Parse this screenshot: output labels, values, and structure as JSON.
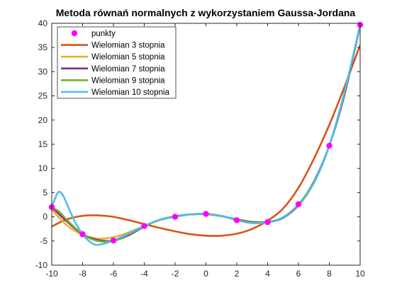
{
  "chart_data": {
    "type": "line",
    "title": "Metoda równań normalnych z wykorzystaniem Gaussa-Jordana",
    "xlabel": "",
    "ylabel": "",
    "xlim": [
      -10,
      10
    ],
    "ylim": [
      -10,
      40
    ],
    "xticks": [
      -10,
      -8,
      -6,
      -4,
      -2,
      0,
      2,
      4,
      6,
      8,
      10
    ],
    "yticks": [
      -10,
      -5,
      0,
      5,
      10,
      15,
      20,
      25,
      30,
      35,
      40
    ],
    "grid": false,
    "legend_position": "top-left",
    "points": {
      "name": "punkty",
      "color": "#FF00FF",
      "x": [
        -10,
        -8,
        -6,
        -4,
        -2,
        0,
        2,
        4,
        6,
        8,
        10
      ],
      "y": [
        2.0,
        -3.6,
        -4.9,
        -1.9,
        0.0,
        0.6,
        -0.7,
        -1.1,
        2.6,
        14.7,
        39.7
      ]
    },
    "series": [
      {
        "name": "Wielomian 3 stopnia",
        "color": "#D95319",
        "x": [
          -10,
          -9,
          -8,
          -7,
          -6,
          -5,
          -4,
          -3,
          -2,
          -1,
          0,
          1,
          2,
          3,
          4,
          5,
          6,
          7,
          8,
          9,
          10
        ],
        "y": [
          -2.0,
          -0.5,
          0.2,
          0.3,
          0.0,
          -0.7,
          -1.5,
          -2.3,
          -3.0,
          -3.6,
          -3.9,
          -3.9,
          -3.5,
          -2.5,
          -0.8,
          1.7,
          6.0,
          12.0,
          19.0,
          27.0,
          35.5
        ]
      },
      {
        "name": "Wielomian 5 stopnia",
        "color": "#EDB120",
        "x": [
          -10,
          -9,
          -8,
          -7,
          -6,
          -5,
          -4,
          -3,
          -2,
          -1,
          0,
          1,
          2,
          3,
          4,
          5,
          6,
          7,
          8,
          9,
          10
        ],
        "y": [
          1.5,
          -1.8,
          -3.7,
          -4.5,
          -4.2,
          -3.2,
          -1.9,
          -0.7,
          0.1,
          0.5,
          0.5,
          0.1,
          -0.5,
          -1.0,
          -1.0,
          -0.2,
          2.3,
          7.0,
          14.7,
          25.5,
          39.5
        ]
      },
      {
        "name": "Wielomian 7 stopnia",
        "color": "#7E2F8E",
        "x": [
          -10,
          -9,
          -8,
          -7,
          -6,
          -5,
          -4,
          -3,
          -2,
          -1,
          0,
          1,
          2,
          3,
          4,
          5,
          6,
          7,
          8,
          9,
          10
        ],
        "y": [
          2.0,
          -1.0,
          -3.6,
          -4.8,
          -4.9,
          -3.8,
          -2.0,
          -0.6,
          0.1,
          0.5,
          0.6,
          0.2,
          -0.6,
          -1.1,
          -1.1,
          -0.2,
          2.5,
          7.3,
          14.7,
          25.4,
          39.7
        ]
      },
      {
        "name": "Wielomian 9 stopnia",
        "color": "#77AC30",
        "x": [
          -10,
          -9.5,
          -9,
          -8,
          -7,
          -6,
          -5,
          -4,
          -3,
          -2,
          -1,
          0,
          1,
          2,
          3,
          4,
          5,
          6,
          7,
          8,
          9,
          10
        ],
        "y": [
          2.0,
          1.0,
          -0.7,
          -3.6,
          -5.0,
          -4.9,
          -3.6,
          -1.9,
          -0.6,
          0.0,
          0.5,
          0.6,
          0.2,
          -0.7,
          -1.2,
          -1.1,
          -0.1,
          2.6,
          7.2,
          14.7,
          25.8,
          39.7
        ]
      },
      {
        "name": "Wielomian 10 stopnia",
        "color": "#4DBEEE",
        "x": [
          -10,
          -9.6,
          -9.3,
          -9,
          -8.5,
          -8,
          -7.5,
          -7,
          -6,
          -5,
          -4,
          -3,
          -2,
          -1,
          0,
          1,
          2,
          3,
          4,
          5,
          6,
          7,
          8,
          9,
          10
        ],
        "y": [
          2.0,
          5.0,
          4.6,
          2.5,
          -1.0,
          -3.6,
          -5.2,
          -5.8,
          -4.9,
          -3.4,
          -1.9,
          -0.6,
          0.0,
          0.5,
          0.6,
          0.2,
          -0.7,
          -1.3,
          -1.1,
          -0.1,
          2.6,
          7.0,
          14.7,
          26.0,
          39.7
        ]
      }
    ]
  }
}
